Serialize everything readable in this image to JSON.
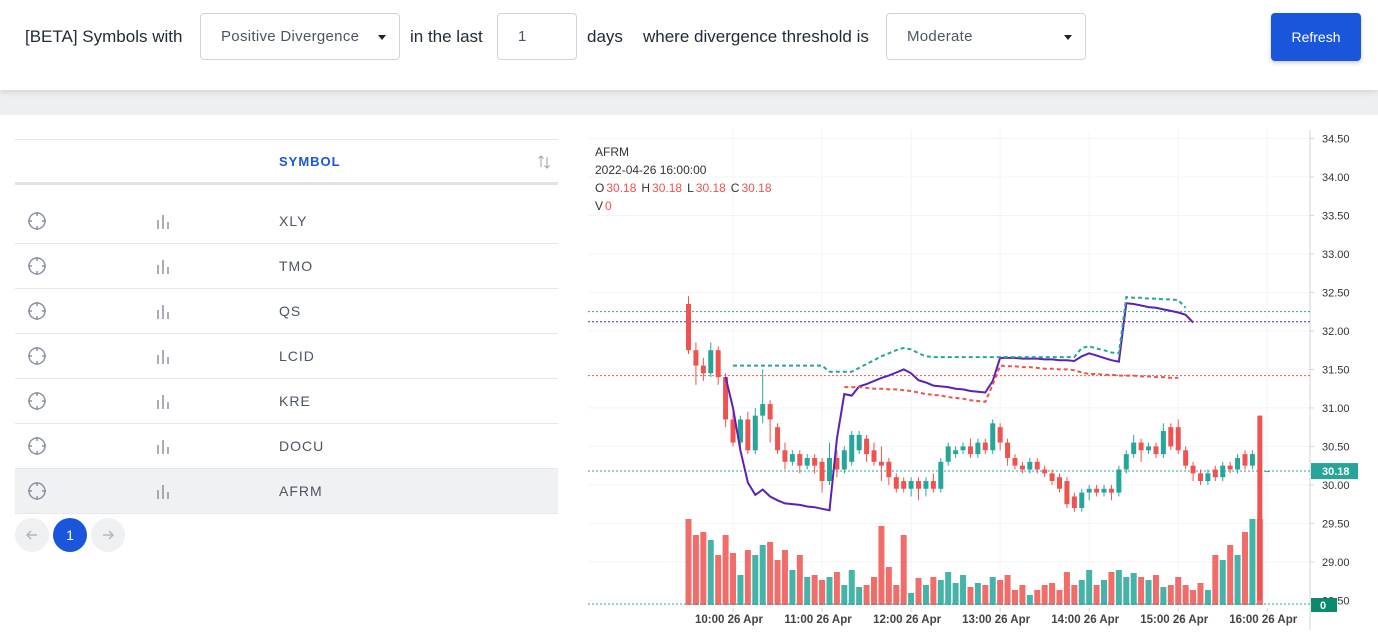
{
  "header": {
    "prefix": "[BETA] Symbols with",
    "divergence": "Positive Divergence",
    "in_the_last": "in the last",
    "days_value": "1",
    "days": "days",
    "threshold_label": "where divergence threshold is",
    "threshold": "Moderate",
    "refresh": "Refresh"
  },
  "table": {
    "column": "SYMBOL",
    "rows": [
      "XLY",
      "TMO",
      "QS",
      "LCID",
      "KRE",
      "DOCU",
      "AFRM"
    ],
    "selected_row": 6
  },
  "pagination": {
    "page": "1"
  },
  "chart_data": {
    "type": "candlestick",
    "title": "AFRM",
    "subtitle": "2022-04-26 16:00:00",
    "legend_labels": [
      "O",
      "H",
      "L",
      "C",
      "V"
    ],
    "up_color": "#26a69a",
    "down_color": "#ef5350",
    "categories": [
      null,
      null,
      null,
      null,
      null,
      null,
      "10:00 26 Apr",
      null,
      null,
      null,
      null,
      null,
      null,
      null,
      null,
      null,
      null,
      null,
      "11:00 26 Apr",
      null,
      null,
      null,
      null,
      null,
      null,
      null,
      null,
      null,
      null,
      null,
      "12:00 26 Apr",
      null,
      null,
      null,
      null,
      null,
      null,
      null,
      null,
      null,
      null,
      null,
      "13:00 26 Apr",
      null,
      null,
      null,
      null,
      null,
      null,
      null,
      null,
      null,
      null,
      null,
      "14:00 26 Apr",
      null,
      null,
      null,
      null,
      null,
      null,
      null,
      null,
      null,
      null,
      null,
      "15:00 26 Apr",
      null,
      null,
      null,
      null,
      null,
      null,
      null,
      null,
      null,
      null,
      null,
      "16:00 26 Apr"
    ],
    "ohlc": [
      [
        32.35,
        32.45,
        31.7,
        31.75
      ],
      [
        31.75,
        31.85,
        31.3,
        31.55
      ],
      [
        31.55,
        31.65,
        31.35,
        31.45
      ],
      [
        31.45,
        31.85,
        31.4,
        31.75
      ],
      [
        31.75,
        31.8,
        31.3,
        31.4
      ],
      [
        31.4,
        31.45,
        30.75,
        30.85
      ],
      [
        30.85,
        30.95,
        30.5,
        30.55
      ],
      [
        30.55,
        30.9,
        30.45,
        30.85
      ],
      [
        30.85,
        30.95,
        30.4,
        30.45
      ],
      [
        30.45,
        31.0,
        30.4,
        30.9
      ],
      [
        30.9,
        31.5,
        30.8,
        31.05
      ],
      [
        31.05,
        31.1,
        30.55,
        30.85
      ],
      [
        30.75,
        30.8,
        30.4,
        30.45
      ],
      [
        30.45,
        30.55,
        30.2,
        30.3
      ],
      [
        30.3,
        30.45,
        30.25,
        30.4
      ],
      [
        30.4,
        30.45,
        30.15,
        30.25
      ],
      [
        30.25,
        30.4,
        30.2,
        30.35
      ],
      [
        30.35,
        30.4,
        30.15,
        30.25
      ],
      [
        30.3,
        30.35,
        29.9,
        30.05
      ],
      [
        30.05,
        30.55,
        30.0,
        30.35
      ],
      [
        30.35,
        30.45,
        30.1,
        30.2
      ],
      [
        30.2,
        30.5,
        30.15,
        30.45
      ],
      [
        30.3,
        30.7,
        30.25,
        30.65
      ],
      [
        30.45,
        30.7,
        30.4,
        30.65
      ],
      [
        30.6,
        30.65,
        30.3,
        30.4
      ],
      [
        30.45,
        30.55,
        30.25,
        30.3
      ],
      [
        30.3,
        30.5,
        30.05,
        30.25
      ],
      [
        30.3,
        30.35,
        30.0,
        30.1
      ],
      [
        30.1,
        30.15,
        29.9,
        29.95
      ],
      [
        30.05,
        30.1,
        29.9,
        29.95
      ],
      [
        29.95,
        30.1,
        29.85,
        30.05
      ],
      [
        30.05,
        30.1,
        29.8,
        29.95
      ],
      [
        29.95,
        30.1,
        29.85,
        30.05
      ],
      [
        30.05,
        30.15,
        29.9,
        29.95
      ],
      [
        29.95,
        30.35,
        29.9,
        30.3
      ],
      [
        30.3,
        30.55,
        30.25,
        30.5
      ],
      [
        30.4,
        30.5,
        30.35,
        30.45
      ],
      [
        30.45,
        30.55,
        30.4,
        30.5
      ],
      [
        30.5,
        30.6,
        30.35,
        30.4
      ],
      [
        30.4,
        30.6,
        30.35,
        30.55
      ],
      [
        30.55,
        30.6,
        30.4,
        30.45
      ],
      [
        30.45,
        30.85,
        30.4,
        30.8
      ],
      [
        30.75,
        30.8,
        30.45,
        30.55
      ],
      [
        30.55,
        30.6,
        30.25,
        30.35
      ],
      [
        30.35,
        30.4,
        30.2,
        30.25
      ],
      [
        30.25,
        30.3,
        30.15,
        30.2
      ],
      [
        30.2,
        30.35,
        30.15,
        30.3
      ],
      [
        30.3,
        30.35,
        30.15,
        30.2
      ],
      [
        30.2,
        30.25,
        30.1,
        30.15
      ],
      [
        30.15,
        30.2,
        30.0,
        30.05
      ],
      [
        30.1,
        30.15,
        29.9,
        29.95
      ],
      [
        30.05,
        30.1,
        29.7,
        29.75
      ],
      [
        29.85,
        29.9,
        29.65,
        29.7
      ],
      [
        29.7,
        29.95,
        29.65,
        29.9
      ],
      [
        29.9,
        30.0,
        29.8,
        29.95
      ],
      [
        29.95,
        30.0,
        29.85,
        29.9
      ],
      [
        29.9,
        30.0,
        29.85,
        29.95
      ],
      [
        29.95,
        30.0,
        29.8,
        29.9
      ],
      [
        29.9,
        30.25,
        29.85,
        30.2
      ],
      [
        30.2,
        30.45,
        30.15,
        30.4
      ],
      [
        30.4,
        30.65,
        30.35,
        30.55
      ],
      [
        30.55,
        30.6,
        30.3,
        30.45
      ],
      [
        30.45,
        30.55,
        30.4,
        30.5
      ],
      [
        30.5,
        30.55,
        30.35,
        30.4
      ],
      [
        30.4,
        30.8,
        30.35,
        30.7
      ],
      [
        30.75,
        30.8,
        30.45,
        30.5
      ],
      [
        30.75,
        30.85,
        30.4,
        30.45
      ],
      [
        30.45,
        30.5,
        30.2,
        30.25
      ],
      [
        30.25,
        30.3,
        30.05,
        30.15
      ],
      [
        30.15,
        30.2,
        30.0,
        30.05
      ],
      [
        30.05,
        30.2,
        30.0,
        30.15
      ],
      [
        30.2,
        30.25,
        30.05,
        30.1
      ],
      [
        30.1,
        30.3,
        30.05,
        30.25
      ],
      [
        30.25,
        30.3,
        30.15,
        30.2
      ],
      [
        30.2,
        30.4,
        30.15,
        30.35
      ],
      [
        30.4,
        30.45,
        30.2,
        30.25
      ],
      [
        30.25,
        30.45,
        30.2,
        30.4
      ],
      [
        30.9,
        30.9,
        28.5,
        28.5
      ],
      [
        30.18,
        30.18,
        30.18,
        30.18
      ]
    ],
    "volume": [
      86,
      70,
      73,
      65,
      50,
      70,
      52,
      30,
      55,
      50,
      60,
      63,
      45,
      55,
      35,
      50,
      28,
      30,
      25,
      28,
      33,
      20,
      35,
      18,
      20,
      28,
      79,
      38,
      20,
      70,
      12,
      27,
      20,
      28,
      25,
      33,
      22,
      30,
      18,
      22,
      20,
      28,
      25,
      30,
      15,
      20,
      10,
      15,
      20,
      22,
      15,
      33,
      20,
      25,
      35,
      20,
      25,
      33,
      35,
      28,
      32,
      28,
      25,
      30,
      18,
      20,
      28,
      20,
      15,
      22,
      15,
      50,
      45,
      60,
      50,
      73,
      86,
      86,
      0
    ],
    "lines": [
      {
        "color": "#5b21b6",
        "dash": false,
        "values": [
          null,
          null,
          null,
          null,
          null,
          31.4,
          31.0,
          30.45,
          30.03,
          29.87,
          29.94,
          29.85,
          29.8,
          29.76,
          29.75,
          29.74,
          29.72,
          29.71,
          29.69,
          29.67,
          30.6,
          31.18,
          31.16,
          31.28,
          31.31,
          31.35,
          31.39,
          31.42,
          31.46,
          31.5,
          31.45,
          31.36,
          31.33,
          31.29,
          31.28,
          31.27,
          31.25,
          31.24,
          31.22,
          31.21,
          31.2,
          31.35,
          31.65,
          31.65,
          31.65,
          31.64,
          31.64,
          31.64,
          31.63,
          31.63,
          31.62,
          31.62,
          31.61,
          31.67,
          31.71,
          31.68,
          31.65,
          31.62,
          31.6,
          32.36,
          32.35,
          32.33,
          32.31,
          32.3,
          32.28,
          32.26,
          32.24,
          32.21,
          32.11,
          null,
          null,
          null,
          null,
          null,
          null,
          null,
          null,
          null,
          null
        ]
      },
      {
        "color": "#26a69a",
        "dash": true,
        "values": [
          null,
          null,
          null,
          null,
          null,
          null,
          31.55,
          31.55,
          31.55,
          31.55,
          31.55,
          31.55,
          31.55,
          31.55,
          31.55,
          31.55,
          31.55,
          31.55,
          31.55,
          31.47,
          31.47,
          31.47,
          31.47,
          31.52,
          31.57,
          31.62,
          31.67,
          31.71,
          31.75,
          31.78,
          31.76,
          31.71,
          31.67,
          31.66,
          31.66,
          31.66,
          31.66,
          31.66,
          31.66,
          31.66,
          31.66,
          31.66,
          31.66,
          31.66,
          31.66,
          31.66,
          31.66,
          31.66,
          31.66,
          31.66,
          31.66,
          31.66,
          31.66,
          31.78,
          31.8,
          31.77,
          31.75,
          31.72,
          31.71,
          32.44,
          32.43,
          32.43,
          32.42,
          32.42,
          32.41,
          32.41,
          32.4,
          32.3,
          null,
          null,
          null,
          null,
          null,
          null,
          null,
          null,
          null,
          null,
          null
        ]
      },
      {
        "color": "#ef5350",
        "dash": true,
        "values": [
          null,
          null,
          null,
          null,
          null,
          null,
          null,
          null,
          null,
          null,
          null,
          null,
          null,
          null,
          null,
          null,
          null,
          null,
          null,
          null,
          null,
          31.27,
          31.27,
          31.27,
          31.26,
          31.25,
          31.25,
          31.24,
          31.24,
          31.23,
          31.22,
          31.2,
          31.18,
          31.17,
          31.16,
          31.14,
          31.13,
          31.12,
          31.1,
          31.09,
          31.08,
          31.3,
          31.55,
          31.54,
          31.54,
          31.53,
          31.53,
          31.52,
          31.51,
          31.51,
          31.5,
          31.5,
          31.49,
          31.46,
          31.44,
          31.44,
          31.43,
          31.43,
          31.42,
          31.42,
          31.42,
          31.41,
          31.41,
          31.4,
          31.4,
          31.39,
          31.39,
          null,
          null,
          null,
          null,
          null,
          null,
          null,
          null,
          null,
          null,
          null,
          null
        ]
      }
    ],
    "hlines": [
      {
        "value": 32.25,
        "color": "#26a69a"
      },
      {
        "value": 32.12,
        "color": "#5b21b6"
      },
      {
        "value": 31.42,
        "color": "#ef5350"
      },
      {
        "value": 30.18,
        "color": "#26a69a"
      }
    ],
    "ylim": [
      28.44,
      34.61
    ],
    "yticks": [
      {
        "value": 28.5,
        "label": "28.50"
      },
      {
        "value": 29,
        "label": "29.00"
      },
      {
        "value": 29.5,
        "label": "29.50"
      },
      {
        "value": 30,
        "label": "30.00"
      },
      {
        "value": 30.5,
        "label": "30.50"
      },
      {
        "value": 31,
        "label": "31.00"
      },
      {
        "value": 31.5,
        "label": "31.50"
      },
      {
        "value": 32,
        "label": "32.00"
      },
      {
        "value": 32.5,
        "label": "32.50"
      },
      {
        "value": 33,
        "label": "33.00"
      },
      {
        "value": 33.5,
        "label": "33.50"
      },
      {
        "value": 34,
        "label": "34.00"
      },
      {
        "value": 34.5,
        "label": "34.50"
      }
    ],
    "grid": true
  }
}
